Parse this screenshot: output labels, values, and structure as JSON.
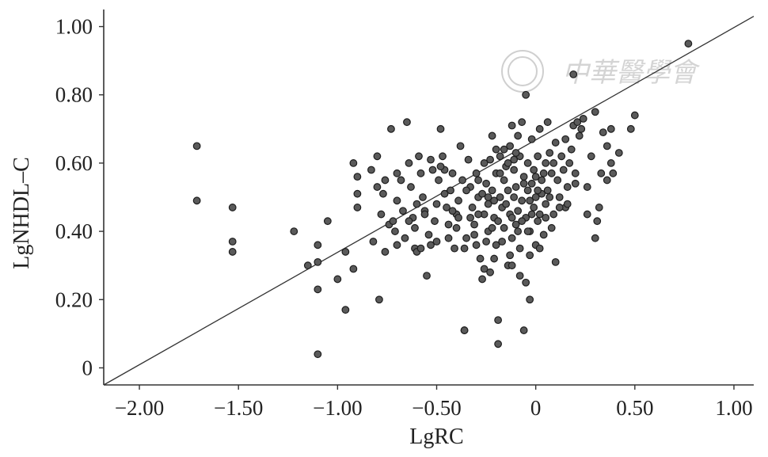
{
  "chart_data": {
    "type": "scatter",
    "title": "",
    "xlabel": "LgRC",
    "ylabel": "LgNHDL–C",
    "xlim": [
      -2.18,
      1.1
    ],
    "ylim": [
      -0.05,
      1.05
    ],
    "x_ticks": [
      -2.0,
      -1.5,
      -1.0,
      -0.5,
      0,
      0.5,
      1.0
    ],
    "x_tick_labels": [
      "−2.00",
      "−1.50",
      "−1.00",
      "−0.50",
      "0",
      "0.50",
      "1.00"
    ],
    "y_ticks": [
      0,
      0.2,
      0.4,
      0.6,
      0.8,
      1.0
    ],
    "y_tick_labels": [
      "0",
      "0.20",
      "0.40",
      "0.60",
      "0.80",
      "1.00"
    ],
    "grid": false,
    "legend": "none",
    "fit_line": {
      "x": [
        -2.18,
        1.1
      ],
      "y": [
        -0.05,
        1.03
      ]
    },
    "series": [
      {
        "points": [
          [
            -1.71,
            0.65
          ],
          [
            -1.71,
            0.49
          ],
          [
            -1.53,
            0.47
          ],
          [
            -1.53,
            0.37
          ],
          [
            -1.53,
            0.34
          ],
          [
            -1.22,
            0.4
          ],
          [
            -1.15,
            0.3
          ],
          [
            -1.1,
            0.36
          ],
          [
            -1.1,
            0.31
          ],
          [
            -1.1,
            0.23
          ],
          [
            -1.1,
            0.04
          ],
          [
            -1.05,
            0.43
          ],
          [
            -1.0,
            0.26
          ],
          [
            -0.96,
            0.34
          ],
          [
            -0.96,
            0.17
          ],
          [
            -0.92,
            0.29
          ],
          [
            -0.92,
            0.6
          ],
          [
            -0.9,
            0.56
          ],
          [
            -0.9,
            0.51
          ],
          [
            -0.9,
            0.47
          ],
          [
            -0.83,
            0.58
          ],
          [
            -0.82,
            0.37
          ],
          [
            -0.8,
            0.62
          ],
          [
            -0.8,
            0.53
          ],
          [
            -0.79,
            0.2
          ],
          [
            -0.78,
            0.45
          ],
          [
            -0.77,
            0.51
          ],
          [
            -0.76,
            0.34
          ],
          [
            -0.74,
            0.42
          ],
          [
            -0.73,
            0.7
          ],
          [
            -0.72,
            0.43
          ],
          [
            -0.71,
            0.4
          ],
          [
            -0.7,
            0.36
          ],
          [
            -0.7,
            0.57
          ],
          [
            -0.68,
            0.55
          ],
          [
            -0.67,
            0.46
          ],
          [
            -0.66,
            0.38
          ],
          [
            -0.65,
            0.72
          ],
          [
            -0.64,
            0.6
          ],
          [
            -0.63,
            0.53
          ],
          [
            -0.62,
            0.44
          ],
          [
            -0.61,
            0.41
          ],
          [
            -0.61,
            0.35
          ],
          [
            -0.6,
            0.34
          ],
          [
            -0.6,
            0.48
          ],
          [
            -0.59,
            0.62
          ],
          [
            -0.58,
            0.57
          ],
          [
            -0.57,
            0.5
          ],
          [
            -0.56,
            0.46
          ],
          [
            -0.55,
            0.27
          ],
          [
            -0.54,
            0.39
          ],
          [
            -0.53,
            0.36
          ],
          [
            -0.52,
            0.58
          ],
          [
            -0.51,
            0.43
          ],
          [
            -0.5,
            0.48
          ],
          [
            -0.49,
            0.55
          ],
          [
            -0.48,
            0.7
          ],
          [
            -0.47,
            0.62
          ],
          [
            -0.46,
            0.58
          ],
          [
            -0.45,
            0.47
          ],
          [
            -0.44,
            0.42
          ],
          [
            -0.43,
            0.52
          ],
          [
            -0.42,
            0.57
          ],
          [
            -0.41,
            0.35
          ],
          [
            -0.4,
            0.45
          ],
          [
            -0.39,
            0.49
          ],
          [
            -0.38,
            0.65
          ],
          [
            -0.37,
            0.55
          ],
          [
            -0.36,
            0.11
          ],
          [
            -0.36,
            0.11
          ],
          [
            -0.35,
            0.38
          ],
          [
            -0.34,
            0.61
          ],
          [
            -0.33,
            0.53
          ],
          [
            -0.32,
            0.47
          ],
          [
            -0.31,
            0.42
          ],
          [
            -0.3,
            0.57
          ],
          [
            -0.3,
            0.36
          ],
          [
            -0.29,
            0.5
          ],
          [
            -0.28,
            0.32
          ],
          [
            -0.27,
            0.26
          ],
          [
            -0.26,
            0.45
          ],
          [
            -0.26,
            0.6
          ],
          [
            -0.25,
            0.54
          ],
          [
            -0.24,
            0.4
          ],
          [
            -0.24,
            0.48
          ],
          [
            -0.23,
            0.28
          ],
          [
            -0.22,
            0.52
          ],
          [
            -0.22,
            0.68
          ],
          [
            -0.21,
            0.44
          ],
          [
            -0.2,
            0.57
          ],
          [
            -0.2,
            0.36
          ],
          [
            -0.19,
            0.14
          ],
          [
            -0.19,
            0.07
          ],
          [
            -0.18,
            0.5
          ],
          [
            -0.18,
            0.62
          ],
          [
            -0.17,
            0.47
          ],
          [
            -0.16,
            0.41
          ],
          [
            -0.16,
            0.55
          ],
          [
            -0.15,
            0.59
          ],
          [
            -0.14,
            0.3
          ],
          [
            -0.14,
            0.52
          ],
          [
            -0.13,
            0.45
          ],
          [
            -0.13,
            0.65
          ],
          [
            -0.12,
            0.71
          ],
          [
            -0.12,
            0.38
          ],
          [
            -0.11,
            0.5
          ],
          [
            -0.11,
            0.58
          ],
          [
            -0.1,
            0.42
          ],
          [
            -0.1,
            0.53
          ],
          [
            -0.09,
            0.68
          ],
          [
            -0.09,
            0.46
          ],
          [
            -0.08,
            0.62
          ],
          [
            -0.08,
            0.35
          ],
          [
            -0.07,
            0.72
          ],
          [
            -0.07,
            0.49
          ],
          [
            -0.06,
            0.11
          ],
          [
            -0.06,
            0.56
          ],
          [
            -0.05,
            0.8
          ],
          [
            -0.05,
            0.25
          ],
          [
            -0.05,
            0.44
          ],
          [
            -0.04,
            0.52
          ],
          [
            -0.04,
            0.6
          ],
          [
            -0.03,
            0.2
          ],
          [
            -0.03,
            0.4
          ],
          [
            -0.02,
            0.54
          ],
          [
            -0.02,
            0.67
          ],
          [
            -0.01,
            0.47
          ],
          [
            -0.01,
            0.58
          ],
          [
            0.0,
            0.5
          ],
          [
            0.0,
            0.36
          ],
          [
            0.01,
            0.62
          ],
          [
            0.02,
            0.45
          ],
          [
            0.02,
            0.7
          ],
          [
            0.03,
            0.55
          ],
          [
            0.04,
            0.39
          ],
          [
            0.05,
            0.6
          ],
          [
            0.05,
            0.48
          ],
          [
            0.06,
            0.72
          ],
          [
            0.06,
            0.52
          ],
          [
            0.07,
            0.63
          ],
          [
            0.08,
            0.57
          ],
          [
            0.09,
            0.45
          ],
          [
            0.1,
            0.66
          ],
          [
            0.1,
            0.31
          ],
          [
            0.11,
            0.55
          ],
          [
            0.12,
            0.5
          ],
          [
            0.13,
            0.62
          ],
          [
            0.14,
            0.58
          ],
          [
            0.15,
            0.67
          ],
          [
            0.15,
            0.47
          ],
          [
            0.16,
            0.53
          ],
          [
            0.17,
            0.6
          ],
          [
            0.18,
            0.64
          ],
          [
            0.19,
            0.71
          ],
          [
            0.19,
            0.86
          ],
          [
            0.2,
            0.54
          ],
          [
            0.21,
            0.72
          ],
          [
            0.22,
            0.68
          ],
          [
            0.23,
            0.7
          ],
          [
            0.24,
            0.73
          ],
          [
            0.26,
            0.53
          ],
          [
            0.28,
            0.62
          ],
          [
            0.3,
            0.38
          ],
          [
            0.3,
            0.75
          ],
          [
            0.31,
            0.43
          ],
          [
            0.32,
            0.47
          ],
          [
            0.33,
            0.57
          ],
          [
            0.34,
            0.69
          ],
          [
            0.36,
            0.55
          ],
          [
            0.38,
            0.6
          ],
          [
            0.38,
            0.7
          ],
          [
            0.39,
            0.57
          ],
          [
            0.42,
            0.63
          ],
          [
            0.48,
            0.7
          ],
          [
            0.5,
            0.74
          ],
          [
            0.77,
            0.95
          ],
          [
            -0.33,
            0.44
          ],
          [
            -0.27,
            0.51
          ],
          [
            -0.21,
            0.49
          ],
          [
            -0.19,
            0.43
          ],
          [
            -0.15,
            0.48
          ],
          [
            -0.12,
            0.44
          ],
          [
            -0.07,
            0.43
          ],
          [
            -0.03,
            0.49
          ],
          [
            0.0,
            0.56
          ],
          [
            0.03,
            0.51
          ],
          [
            -0.25,
            0.37
          ],
          [
            -0.22,
            0.41
          ],
          [
            -0.17,
            0.37
          ],
          [
            -0.13,
            0.33
          ],
          [
            -0.09,
            0.4
          ],
          [
            -0.39,
            0.44
          ],
          [
            -0.44,
            0.38
          ],
          [
            -0.5,
            0.37
          ],
          [
            -0.56,
            0.45
          ],
          [
            -0.46,
            0.51
          ],
          [
            -0.42,
            0.46
          ],
          [
            -0.35,
            0.52
          ],
          [
            -0.29,
            0.55
          ],
          [
            -0.23,
            0.61
          ],
          [
            -0.18,
            0.57
          ],
          [
            -0.14,
            0.6
          ],
          [
            -0.1,
            0.63
          ],
          [
            -0.06,
            0.54
          ],
          [
            -0.02,
            0.45
          ],
          [
            0.01,
            0.52
          ],
          [
            0.04,
            0.57
          ],
          [
            0.07,
            0.5
          ],
          [
            0.09,
            0.6
          ],
          [
            0.12,
            0.47
          ],
          [
            0.16,
            0.48
          ],
          [
            0.2,
            0.57
          ],
          [
            -0.31,
            0.39
          ],
          [
            -0.36,
            0.35
          ],
          [
            -0.4,
            0.41
          ],
          [
            -0.58,
            0.35
          ],
          [
            -0.64,
            0.43
          ],
          [
            -0.7,
            0.49
          ],
          [
            -0.76,
            0.55
          ],
          [
            -0.53,
            0.61
          ],
          [
            -0.48,
            0.59
          ],
          [
            -0.2,
            0.64
          ],
          [
            -0.16,
            0.64
          ],
          [
            -0.11,
            0.61
          ],
          [
            -0.04,
            0.4
          ],
          [
            0.01,
            0.43
          ],
          [
            0.05,
            0.44
          ],
          [
            0.08,
            0.41
          ],
          [
            -0.26,
            0.29
          ],
          [
            -0.21,
            0.32
          ],
          [
            -0.12,
            0.3
          ],
          [
            -0.08,
            0.27
          ],
          [
            -0.03,
            0.33
          ],
          [
            0.02,
            0.35
          ],
          [
            -0.29,
            0.45
          ],
          [
            -0.24,
            0.5
          ],
          [
            0.26,
            0.45
          ],
          [
            0.36,
            0.65
          ]
        ]
      }
    ]
  },
  "watermark": {
    "seal": "seal-watermark",
    "text": "中華醫學會"
  }
}
